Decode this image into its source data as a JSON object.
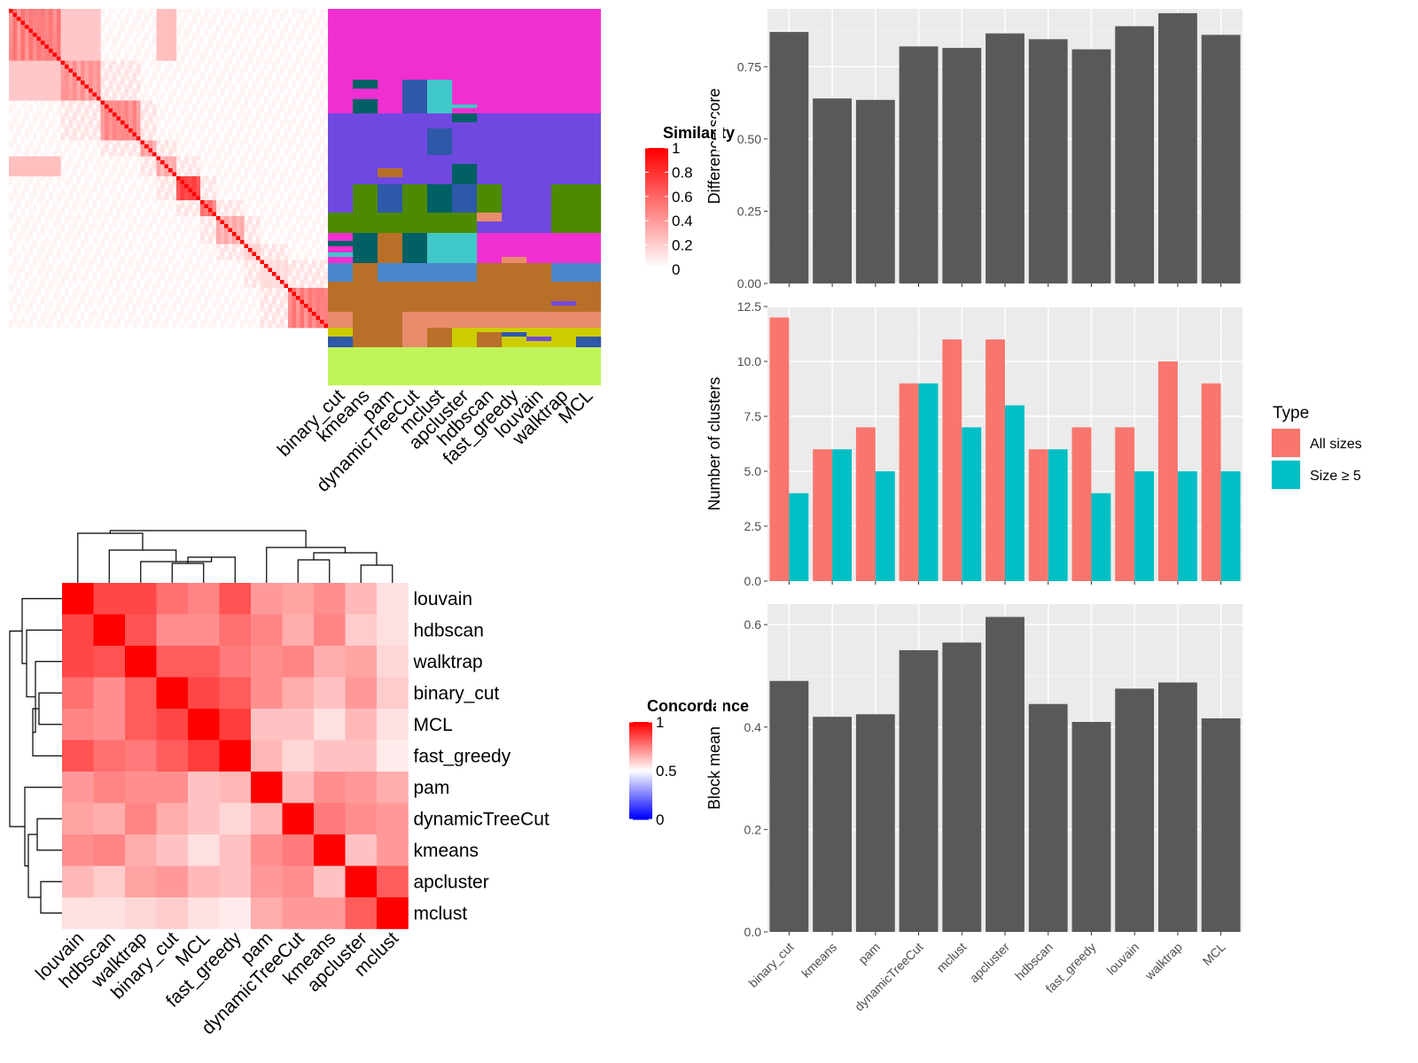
{
  "methods": [
    "binary_cut",
    "kmeans",
    "pam",
    "dynamicTreeCut",
    "mclust",
    "apcluster",
    "hdbscan",
    "fast_greedy",
    "louvain",
    "walktrap",
    "MCL"
  ],
  "similarity_heatmap": {
    "legend_title": "Similarity",
    "legend_ticks": [
      "1",
      "0.8",
      "0.6",
      "0.4",
      "0.2",
      "0"
    ],
    "colors": {
      "low": "#ffffff",
      "high": "#ff0000"
    }
  },
  "concordance_heatmap": {
    "legend_title": "Concordance",
    "legend_ticks": [
      "1",
      "0.5",
      "0"
    ],
    "order": [
      "louvain",
      "hdbscan",
      "walktrap",
      "binary_cut",
      "MCL",
      "fast_greedy",
      "pam",
      "dynamicTreeCut",
      "kmeans",
      "apcluster",
      "mclust"
    ],
    "colors": {
      "low": "#0000ff",
      "mid": "#ffffff",
      "high": "#ff0000"
    },
    "values": [
      [
        1.0,
        0.86,
        0.86,
        0.78,
        0.74,
        0.84,
        0.7,
        0.68,
        0.72,
        0.64,
        0.56
      ],
      [
        0.86,
        1.0,
        0.84,
        0.72,
        0.72,
        0.78,
        0.74,
        0.66,
        0.74,
        0.6,
        0.56
      ],
      [
        0.86,
        0.84,
        1.0,
        0.82,
        0.82,
        0.76,
        0.72,
        0.74,
        0.66,
        0.68,
        0.58
      ],
      [
        0.78,
        0.72,
        0.82,
        1.0,
        0.86,
        0.82,
        0.72,
        0.66,
        0.62,
        0.7,
        0.6
      ],
      [
        0.74,
        0.72,
        0.82,
        0.86,
        1.0,
        0.88,
        0.62,
        0.62,
        0.56,
        0.64,
        0.56
      ],
      [
        0.84,
        0.78,
        0.76,
        0.82,
        0.88,
        1.0,
        0.64,
        0.58,
        0.62,
        0.62,
        0.54
      ],
      [
        0.7,
        0.74,
        0.72,
        0.72,
        0.62,
        0.64,
        1.0,
        0.64,
        0.72,
        0.7,
        0.66
      ],
      [
        0.68,
        0.66,
        0.74,
        0.66,
        0.62,
        0.58,
        0.64,
        1.0,
        0.76,
        0.72,
        0.7
      ],
      [
        0.72,
        0.74,
        0.66,
        0.62,
        0.56,
        0.62,
        0.72,
        0.76,
        1.0,
        0.62,
        0.7
      ],
      [
        0.64,
        0.6,
        0.68,
        0.7,
        0.64,
        0.62,
        0.7,
        0.72,
        0.62,
        1.0,
        0.82
      ],
      [
        0.56,
        0.56,
        0.58,
        0.6,
        0.56,
        0.54,
        0.66,
        0.7,
        0.7,
        0.82,
        1.0
      ]
    ]
  },
  "chart_data": [
    {
      "type": "bar",
      "categories": [
        "binary_cut",
        "kmeans",
        "pam",
        "dynamicTreeCut",
        "mclust",
        "apcluster",
        "hdbscan",
        "fast_greedy",
        "louvain",
        "walktrap",
        "MCL"
      ],
      "values": [
        0.87,
        0.64,
        0.635,
        0.82,
        0.815,
        0.865,
        0.845,
        0.81,
        0.89,
        0.935,
        0.86
      ],
      "ylabel": "Difference score",
      "ylim": [
        0,
        0.95
      ],
      "yticks": [
        "0.00",
        "0.25",
        "0.50",
        "0.75"
      ],
      "color": "#595959"
    },
    {
      "type": "bar",
      "categories": [
        "binary_cut",
        "kmeans",
        "pam",
        "dynamicTreeCut",
        "mclust",
        "apcluster",
        "hdbscan",
        "fast_greedy",
        "louvain",
        "walktrap",
        "MCL"
      ],
      "series": [
        {
          "name": "All sizes",
          "color": "#F8766D",
          "values": [
            12,
            6,
            7,
            9,
            11,
            11,
            6,
            7,
            7,
            10,
            9
          ]
        },
        {
          "name": "Size ≥ 5",
          "color": "#00BFC4",
          "values": [
            4,
            6,
            5,
            9,
            7,
            8,
            6,
            4,
            5,
            5,
            5
          ]
        }
      ],
      "ylabel": "Number of clusters",
      "ylim": [
        0,
        12.5
      ],
      "yticks": [
        "0.0",
        "2.5",
        "5.0",
        "7.5",
        "10.0",
        "12.5"
      ],
      "legend": {
        "title": "Type",
        "placement": "right"
      }
    },
    {
      "type": "bar",
      "categories": [
        "binary_cut",
        "kmeans",
        "pam",
        "dynamicTreeCut",
        "mclust",
        "apcluster",
        "hdbscan",
        "fast_greedy",
        "louvain",
        "walktrap",
        "MCL"
      ],
      "values": [
        0.49,
        0.42,
        0.425,
        0.55,
        0.565,
        0.615,
        0.445,
        0.41,
        0.475,
        0.487,
        0.417
      ],
      "ylabel": "Block mean",
      "ylim": [
        0,
        0.64
      ],
      "yticks": [
        "0.0",
        "0.2",
        "0.4",
        "0.6"
      ],
      "color": "#595959"
    }
  ]
}
